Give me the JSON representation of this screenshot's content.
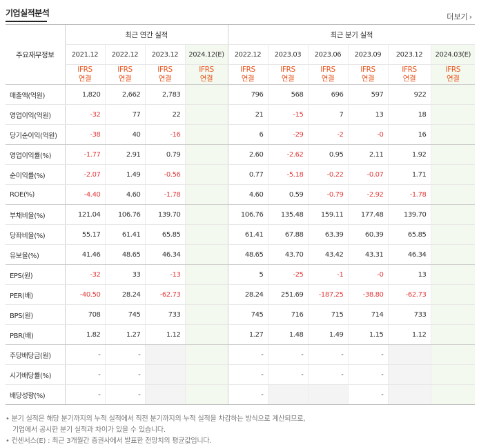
{
  "header": {
    "title": "기업실적분석",
    "more_label": "더보기"
  },
  "columns": {
    "label_header": "주요재무정보",
    "annual_group": "최근 연간 실적",
    "quarter_group": "최근 분기 실적",
    "annual_periods": [
      "2021.12",
      "2022.12",
      "2023.12",
      "2024.12(E)"
    ],
    "quarter_periods": [
      "2022.12",
      "2023.03",
      "2023.06",
      "2023.09",
      "2023.12",
      "2024.03(E)"
    ],
    "basis_top": "IFRS",
    "basis_bottom": "연결"
  },
  "rows": [
    {
      "label": "매출액(억원)",
      "annual": [
        "1,820",
        "2,662",
        "2,783",
        ""
      ],
      "quarter": [
        "796",
        "568",
        "696",
        "597",
        "922",
        ""
      ]
    },
    {
      "label": "영업이익(억원)",
      "annual": [
        "-32",
        "77",
        "22",
        ""
      ],
      "quarter": [
        "21",
        "-15",
        "7",
        "13",
        "18",
        ""
      ]
    },
    {
      "label": "당기순이익(억원)",
      "annual": [
        "-38",
        "40",
        "-16",
        ""
      ],
      "quarter": [
        "6",
        "-29",
        "-2",
        "-0",
        "16",
        ""
      ]
    },
    {
      "label": "영업이익률(%)",
      "annual": [
        "-1.77",
        "2.91",
        "0.79",
        ""
      ],
      "quarter": [
        "2.60",
        "-2.62",
        "0.95",
        "2.11",
        "1.92",
        ""
      ]
    },
    {
      "label": "순이익률(%)",
      "annual": [
        "-2.07",
        "1.49",
        "-0.56",
        ""
      ],
      "quarter": [
        "0.77",
        "-5.18",
        "-0.22",
        "-0.07",
        "1.71",
        ""
      ]
    },
    {
      "label": "ROE(%)",
      "annual": [
        "-4.40",
        "4.60",
        "-1.78",
        ""
      ],
      "quarter": [
        "4.60",
        "0.59",
        "-0.79",
        "-2.92",
        "-1.78",
        ""
      ]
    },
    {
      "label": "부채비율(%)",
      "annual": [
        "121.04",
        "106.76",
        "139.70",
        ""
      ],
      "quarter": [
        "106.76",
        "135.48",
        "159.11",
        "177.48",
        "139.70",
        ""
      ]
    },
    {
      "label": "당좌비율(%)",
      "annual": [
        "55.17",
        "61.41",
        "65.85",
        ""
      ],
      "quarter": [
        "61.41",
        "67.88",
        "63.39",
        "60.39",
        "65.85",
        ""
      ]
    },
    {
      "label": "유보율(%)",
      "annual": [
        "41.46",
        "48.65",
        "46.34",
        ""
      ],
      "quarter": [
        "48.65",
        "43.70",
        "43.42",
        "43.31",
        "46.34",
        ""
      ]
    },
    {
      "label": "EPS(원)",
      "annual": [
        "-32",
        "33",
        "-13",
        ""
      ],
      "quarter": [
        "5",
        "-25",
        "-1",
        "-0",
        "13",
        ""
      ]
    },
    {
      "label": "PER(배)",
      "annual": [
        "-40.50",
        "28.24",
        "-62.73",
        ""
      ],
      "quarter": [
        "28.24",
        "251.69",
        "-187.25",
        "-38.80",
        "-62.73",
        ""
      ]
    },
    {
      "label": "BPS(원)",
      "annual": [
        "708",
        "745",
        "733",
        ""
      ],
      "quarter": [
        "745",
        "716",
        "715",
        "714",
        "733",
        ""
      ]
    },
    {
      "label": "PBR(배)",
      "annual": [
        "1.82",
        "1.27",
        "1.12",
        ""
      ],
      "quarter": [
        "1.27",
        "1.48",
        "1.49",
        "1.15",
        "1.12",
        ""
      ]
    },
    {
      "label": "주당배당금(원)",
      "annual": [
        "-",
        "-",
        "",
        ""
      ],
      "quarter": [
        "-",
        "-",
        "-",
        "-",
        "",
        ""
      ]
    },
    {
      "label": "시가배당률(%)",
      "annual": [
        "-",
        "-",
        "",
        ""
      ],
      "quarter": [
        "-",
        "-",
        "-",
        "-",
        "",
        ""
      ]
    },
    {
      "label": "배당성향(%)",
      "annual": [
        "-",
        "-",
        "",
        ""
      ],
      "quarter": [
        "-",
        "",
        "",
        "-",
        "",
        ""
      ]
    }
  ],
  "notes": {
    "line1": "• 분기 실적은 해당 분기까지의 누적 실적에서 직전 분기까지의 누적 실적을 차감하는 방식으로 계산되므로,",
    "line2": "기업에서 공시한 분기 실적과 차이가 있을 수 있습니다.",
    "line3": "• 컨센서스(E) : 최근 3개월간 증권사에서 발표한 전망치의 평균값입니다."
  },
  "colors": {
    "negative": "#e03b3b",
    "ifrs": "#e8561f",
    "estimate_bg": "#f3f9ef"
  }
}
